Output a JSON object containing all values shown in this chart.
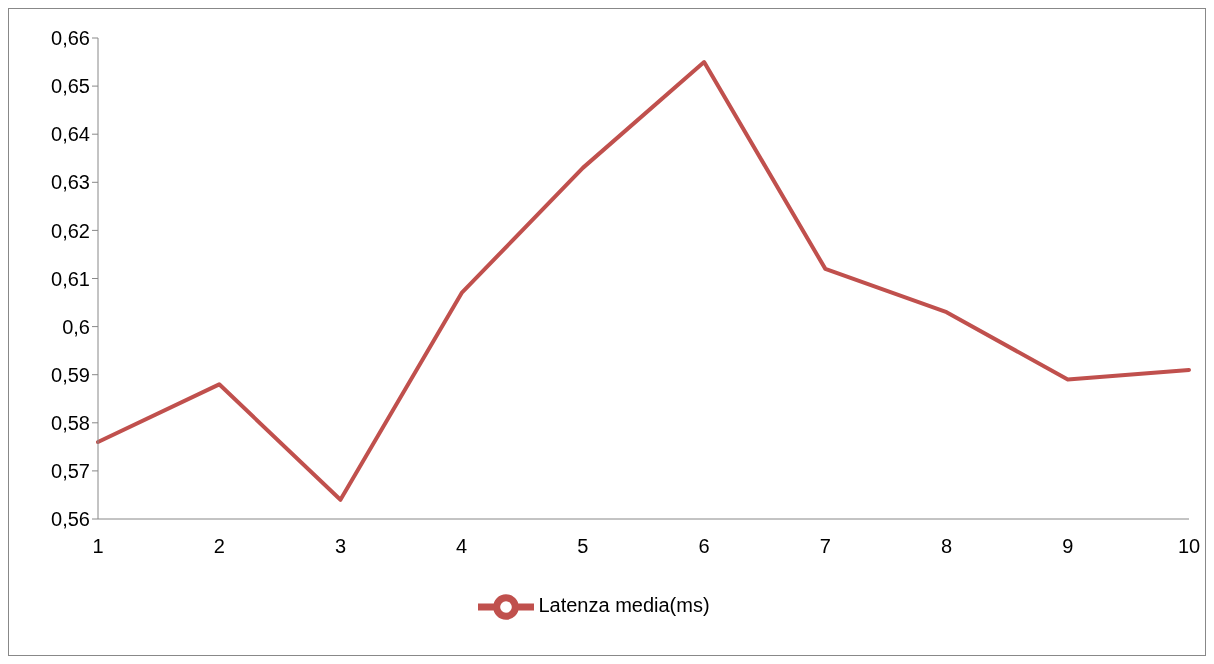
{
  "chart_data": {
    "type": "line",
    "categories": [
      "1",
      "2",
      "3",
      "4",
      "5",
      "6",
      "7",
      "8",
      "9",
      "10"
    ],
    "series": [
      {
        "name": "Latenza media(ms)",
        "color": "#c0504d",
        "values": [
          0.576,
          0.588,
          0.564,
          0.607,
          0.633,
          0.655,
          0.612,
          0.603,
          0.589,
          0.591
        ]
      }
    ],
    "ylim": [
      0.56,
      0.66
    ],
    "yticks": [
      {
        "value": 0.56,
        "label": "0,56"
      },
      {
        "value": 0.57,
        "label": "0,57"
      },
      {
        "value": 0.58,
        "label": "0,58"
      },
      {
        "value": 0.59,
        "label": "0,59"
      },
      {
        "value": 0.6,
        "label": "0,6"
      },
      {
        "value": 0.61,
        "label": "0,61"
      },
      {
        "value": 0.62,
        "label": "0,62"
      },
      {
        "value": 0.63,
        "label": "0,63"
      },
      {
        "value": 0.64,
        "label": "0,64"
      },
      {
        "value": 0.65,
        "label": "0,65"
      },
      {
        "value": 0.66,
        "label": "0,66"
      }
    ],
    "grid": false,
    "legend": "bottom",
    "marker": "none",
    "line_style": "solid"
  }
}
